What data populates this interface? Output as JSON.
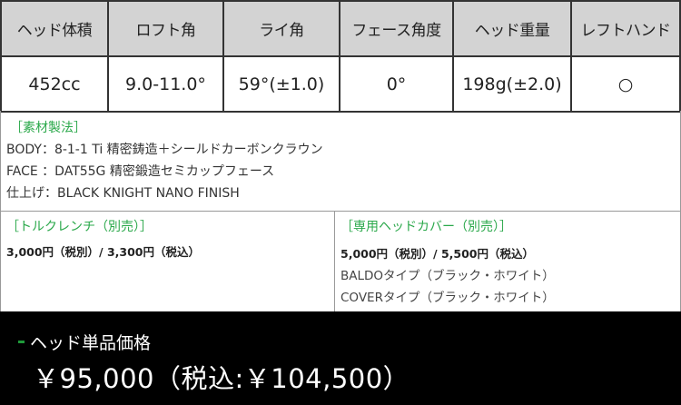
{
  "spec_table": {
    "headers": [
      "ヘッド体積",
      "ロフト角",
      "ライ角",
      "フェース角度",
      "ヘッド重量",
      "レフトハンド"
    ],
    "values": [
      "452cc",
      "9.0-11.0°",
      "59°(±1.0)",
      "0°",
      "198g(±2.0)",
      "○"
    ]
  },
  "materials": {
    "title": "［素材製法］",
    "lines": [
      "BODY：8-1-1 Ti 精密鋳造＋シールドカーボンクラウン",
      "FACE ：DAT55G 精密鍛造セミカップフェース",
      "仕上げ：BLACK KNIGHT NANO FINISH"
    ]
  },
  "torque_wrench": {
    "title": "［トルクレンチ（別売）］",
    "price": "3,000円（税別）/ 3,300円（税込）"
  },
  "head_cover": {
    "title": "［専用ヘッドカバー（別売）］",
    "price": "5,000円（税別）/ 5,500円（税込）",
    "types": [
      "BALDOタイプ（ブラック・ホワイト）",
      "COVERタイプ（ブラック・ホワイト）"
    ]
  },
  "price": {
    "label": "ヘッド単品価格",
    "value": "￥95,000（税込:￥104,500）"
  },
  "colors": {
    "accent": "#2aa84a",
    "header_bg": "#d3d3d3",
    "price_bg": "#000000"
  }
}
